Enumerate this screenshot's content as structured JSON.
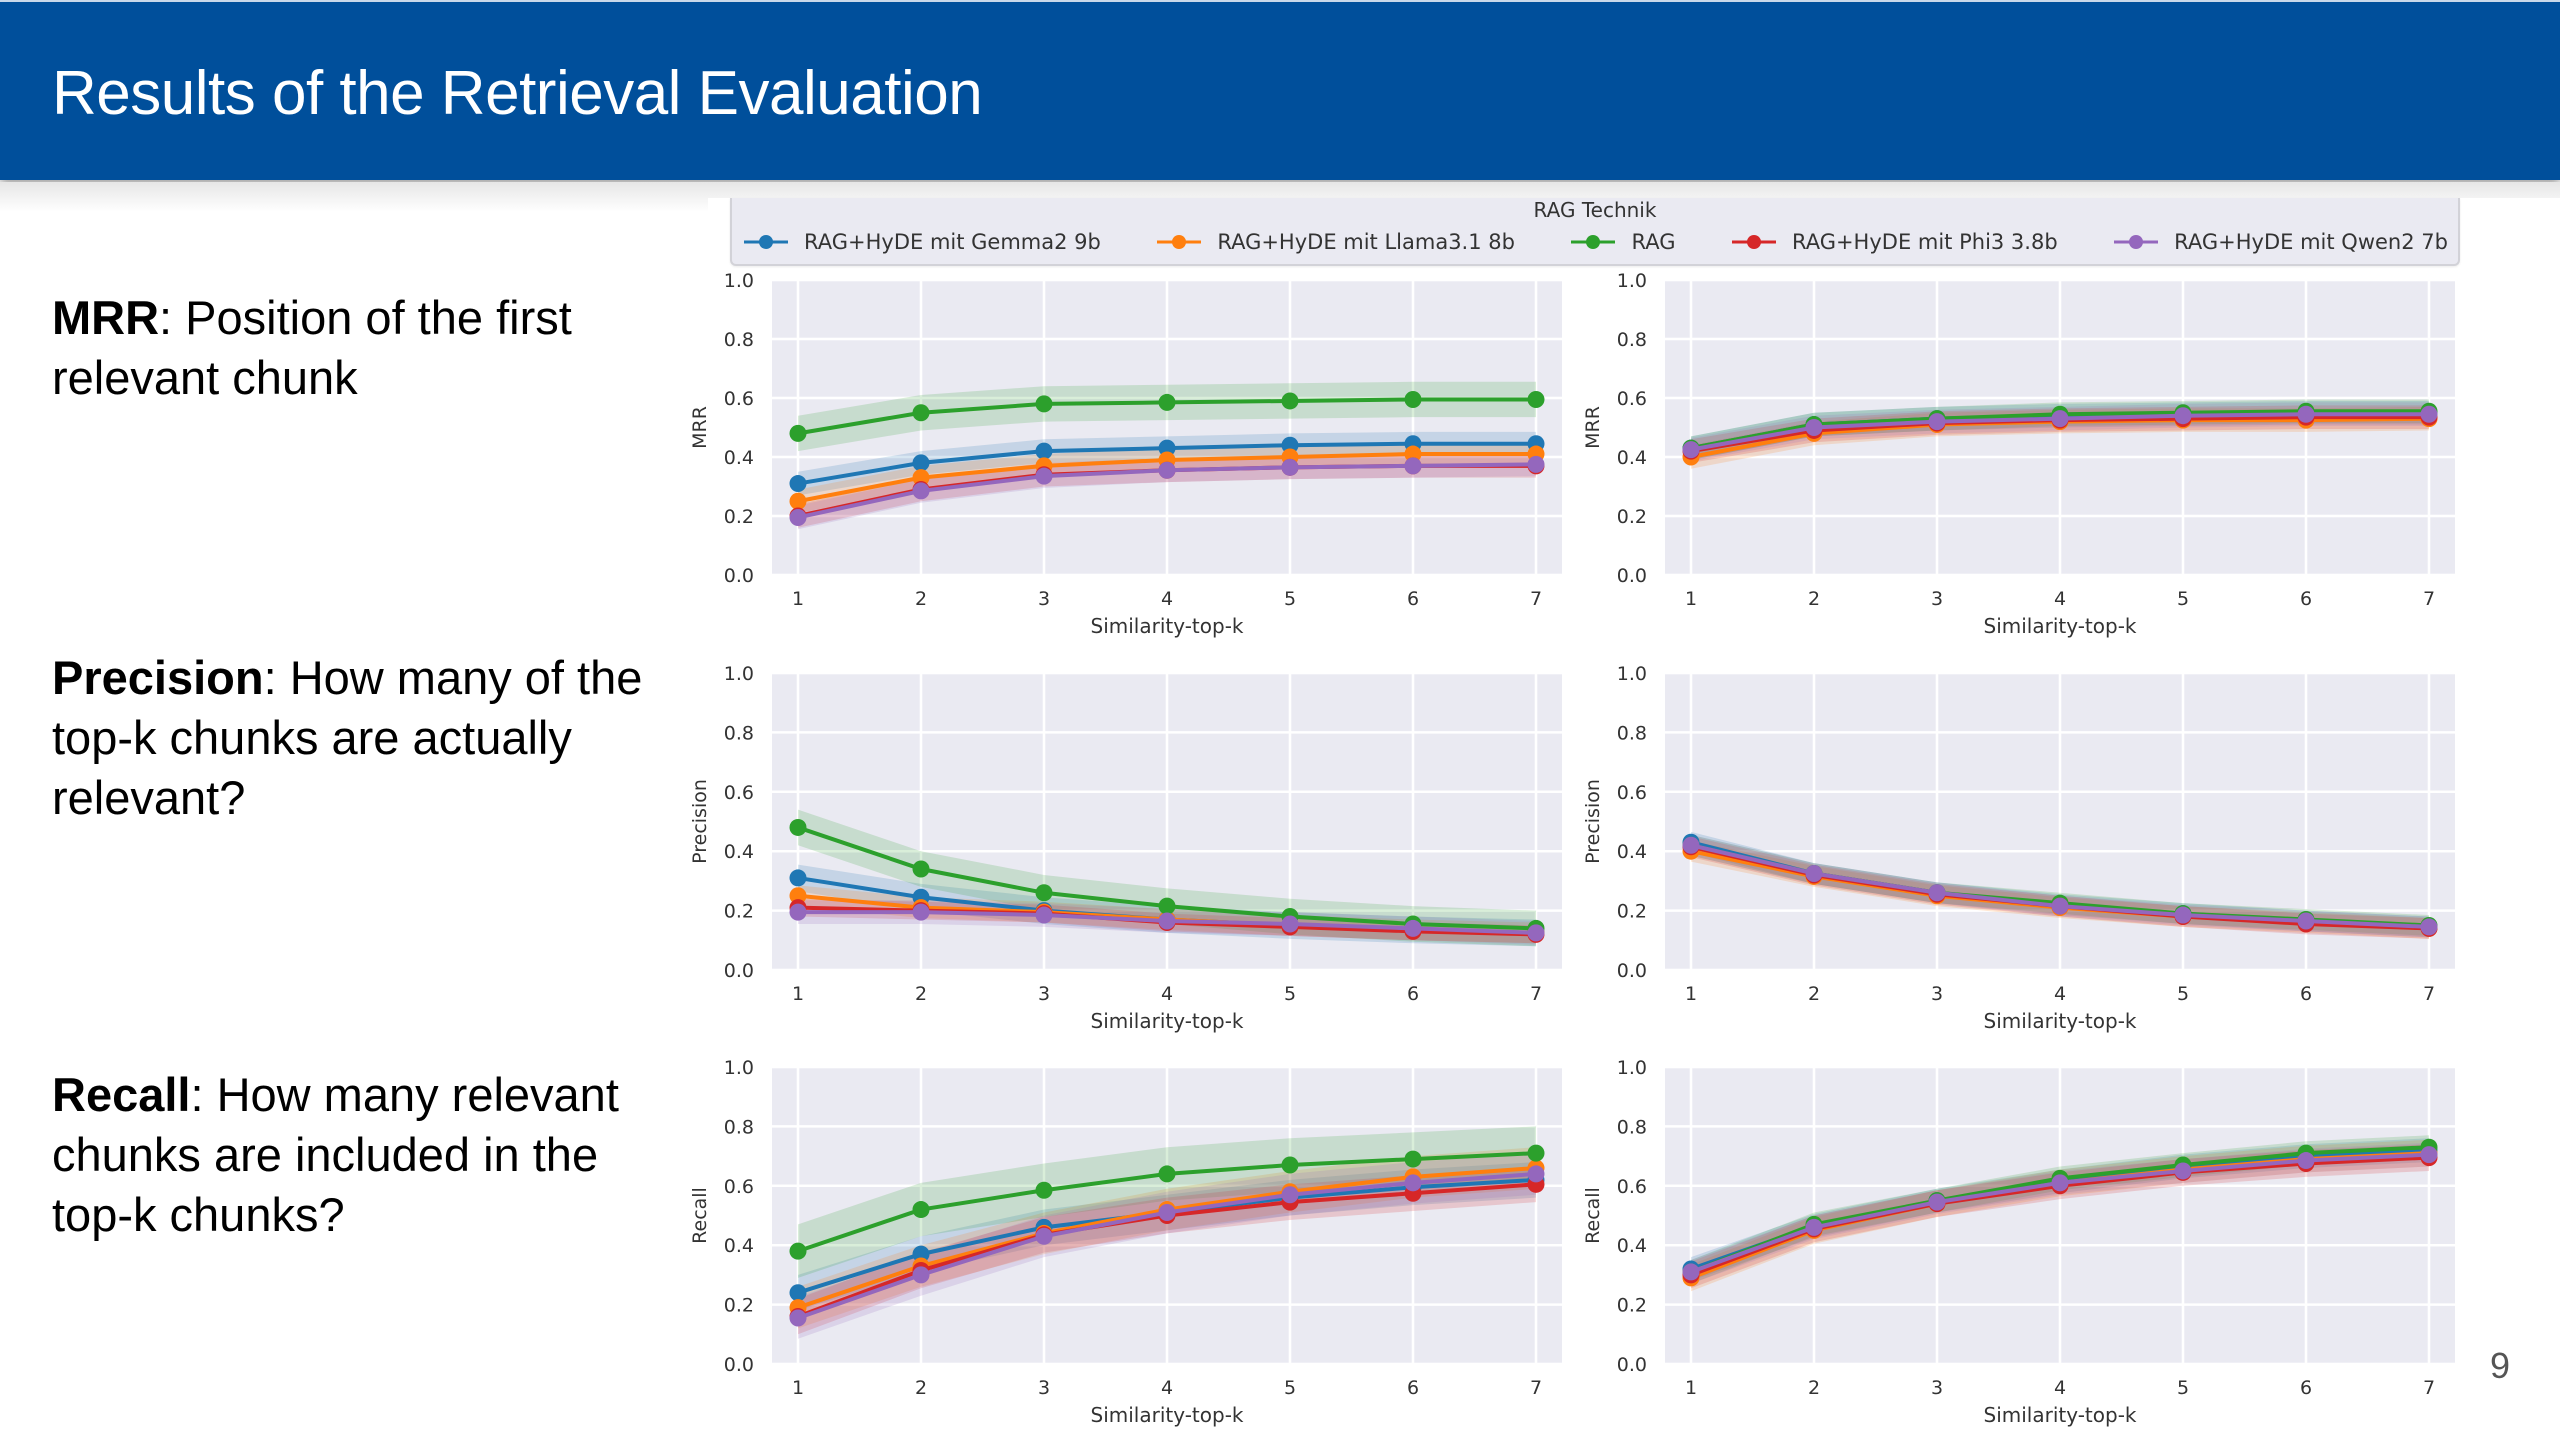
{
  "slide": {
    "title": "Results of the Retrieval Evaluation",
    "page_number": "9",
    "header_color": "#004f9b"
  },
  "descriptions": [
    {
      "term": "MRR",
      "text": ": Position of the first relevant chunk"
    },
    {
      "term": "Precision",
      "text": ": How many of the top-k chunks are actually relevant?"
    },
    {
      "term": "Recall",
      "text": ": How many relevant chunks are included in the top-k chunks?"
    }
  ],
  "legend": {
    "title": "RAG Technik",
    "items": [
      {
        "label": "RAG+HyDE mit Gemma2 9b",
        "color": "#1f77b4"
      },
      {
        "label": "RAG+HyDE mit Llama3.1 8b",
        "color": "#ff7f0e"
      },
      {
        "label": "RAG",
        "color": "#2ca02c"
      },
      {
        "label": "RAG+HyDE mit Phi3 3.8b",
        "color": "#d62728"
      },
      {
        "label": "RAG+HyDE mit Qwen2 7b",
        "color": "#9467bd"
      }
    ]
  },
  "chart_data": [
    {
      "type": "line",
      "id": "mrr-left",
      "title": "",
      "xlabel": "Similarity-top-k",
      "ylabel": "MRR",
      "x": [
        1,
        2,
        3,
        4,
        5,
        6,
        7
      ],
      "ylim": [
        0,
        1.0
      ],
      "yticks": [
        "0.0",
        "0.2",
        "0.4",
        "0.6",
        "0.8",
        "1.0"
      ],
      "xticks": [
        "1",
        "2",
        "3",
        "4",
        "5",
        "6",
        "7"
      ],
      "grid": true,
      "confidence_band": true,
      "series": [
        {
          "name": "RAG+HyDE mit Gemma2 9b",
          "values": [
            0.31,
            0.38,
            0.42,
            0.43,
            0.44,
            0.445,
            0.445
          ],
          "ci": 0.04
        },
        {
          "name": "RAG+HyDE mit Llama3.1 8b",
          "values": [
            0.25,
            0.33,
            0.37,
            0.39,
            0.4,
            0.41,
            0.41
          ],
          "ci": 0.04
        },
        {
          "name": "RAG",
          "values": [
            0.48,
            0.55,
            0.58,
            0.585,
            0.59,
            0.595,
            0.595
          ],
          "ci": 0.06
        },
        {
          "name": "RAG+HyDE mit Phi3 3.8b",
          "values": [
            0.2,
            0.29,
            0.34,
            0.355,
            0.365,
            0.37,
            0.37
          ],
          "ci": 0.04
        },
        {
          "name": "RAG+HyDE mit Qwen2 7b",
          "values": [
            0.195,
            0.285,
            0.335,
            0.355,
            0.365,
            0.37,
            0.375
          ],
          "ci": 0.04
        }
      ]
    },
    {
      "type": "line",
      "id": "mrr-right",
      "title": "",
      "xlabel": "Similarity-top-k",
      "ylabel": "MRR",
      "x": [
        1,
        2,
        3,
        4,
        5,
        6,
        7
      ],
      "ylim": [
        0,
        1.0
      ],
      "yticks": [
        "0.0",
        "0.2",
        "0.4",
        "0.6",
        "0.8",
        "1.0"
      ],
      "xticks": [
        "1",
        "2",
        "3",
        "4",
        "5",
        "6",
        "7"
      ],
      "grid": true,
      "confidence_band": true,
      "series": [
        {
          "name": "RAG+HyDE mit Gemma2 9b",
          "values": [
            0.43,
            0.51,
            0.53,
            0.54,
            0.545,
            0.55,
            0.55
          ],
          "ci": 0.04
        },
        {
          "name": "RAG+HyDE mit Llama3.1 8b",
          "values": [
            0.4,
            0.48,
            0.51,
            0.52,
            0.525,
            0.525,
            0.53
          ],
          "ci": 0.04
        },
        {
          "name": "RAG",
          "values": [
            0.43,
            0.51,
            0.53,
            0.545,
            0.55,
            0.555,
            0.555
          ],
          "ci": 0.04
        },
        {
          "name": "RAG+HyDE mit Phi3 3.8b",
          "values": [
            0.42,
            0.49,
            0.515,
            0.525,
            0.53,
            0.535,
            0.535
          ],
          "ci": 0.04
        },
        {
          "name": "RAG+HyDE mit Qwen2 7b",
          "values": [
            0.425,
            0.5,
            0.52,
            0.53,
            0.54,
            0.545,
            0.545
          ],
          "ci": 0.04
        }
      ]
    },
    {
      "type": "line",
      "id": "precision-left",
      "title": "",
      "xlabel": "Similarity-top-k",
      "ylabel": "Precision",
      "x": [
        1,
        2,
        3,
        4,
        5,
        6,
        7
      ],
      "ylim": [
        0,
        1.0
      ],
      "yticks": [
        "0.0",
        "0.2",
        "0.4",
        "0.6",
        "0.8",
        "1.0"
      ],
      "xticks": [
        "1",
        "2",
        "3",
        "4",
        "5",
        "6",
        "7"
      ],
      "grid": true,
      "confidence_band": true,
      "series": [
        {
          "name": "RAG+HyDE mit Gemma2 9b",
          "values": [
            0.31,
            0.245,
            0.2,
            0.17,
            0.15,
            0.135,
            0.125
          ],
          "ci": 0.045
        },
        {
          "name": "RAG+HyDE mit Llama3.1 8b",
          "values": [
            0.25,
            0.21,
            0.195,
            0.17,
            0.15,
            0.135,
            0.125
          ],
          "ci": 0.035
        },
        {
          "name": "RAG",
          "values": [
            0.48,
            0.34,
            0.26,
            0.215,
            0.18,
            0.155,
            0.14
          ],
          "ci": 0.06
        },
        {
          "name": "RAG+HyDE mit Phi3 3.8b",
          "values": [
            0.21,
            0.2,
            0.19,
            0.16,
            0.145,
            0.13,
            0.12
          ],
          "ci": 0.03
        },
        {
          "name": "RAG+HyDE mit Qwen2 7b",
          "values": [
            0.195,
            0.195,
            0.185,
            0.165,
            0.155,
            0.14,
            0.125
          ],
          "ci": 0.04
        }
      ]
    },
    {
      "type": "line",
      "id": "precision-right",
      "title": "",
      "xlabel": "Similarity-top-k",
      "ylabel": "Precision",
      "x": [
        1,
        2,
        3,
        4,
        5,
        6,
        7
      ],
      "ylim": [
        0,
        1.0
      ],
      "yticks": [
        "0.0",
        "0.2",
        "0.4",
        "0.6",
        "0.8",
        "1.0"
      ],
      "xticks": [
        "1",
        "2",
        "3",
        "4",
        "5",
        "6",
        "7"
      ],
      "grid": true,
      "confidence_band": true,
      "series": [
        {
          "name": "RAG+HyDE mit Gemma2 9b",
          "values": [
            0.43,
            0.325,
            0.26,
            0.22,
            0.19,
            0.165,
            0.145
          ],
          "ci": 0.035
        },
        {
          "name": "RAG+HyDE mit Llama3.1 8b",
          "values": [
            0.4,
            0.315,
            0.25,
            0.21,
            0.18,
            0.16,
            0.14
          ],
          "ci": 0.035
        },
        {
          "name": "RAG",
          "values": [
            0.42,
            0.325,
            0.26,
            0.225,
            0.19,
            0.17,
            0.15
          ],
          "ci": 0.035
        },
        {
          "name": "RAG+HyDE mit Phi3 3.8b",
          "values": [
            0.415,
            0.32,
            0.255,
            0.215,
            0.18,
            0.155,
            0.14
          ],
          "ci": 0.035
        },
        {
          "name": "RAG+HyDE mit Qwen2 7b",
          "values": [
            0.42,
            0.325,
            0.26,
            0.215,
            0.185,
            0.165,
            0.145
          ],
          "ci": 0.035
        }
      ]
    },
    {
      "type": "line",
      "id": "recall-left",
      "title": "",
      "xlabel": "Similarity-top-k",
      "ylabel": "Recall",
      "x": [
        1,
        2,
        3,
        4,
        5,
        6,
        7
      ],
      "ylim": [
        0,
        1.0
      ],
      "yticks": [
        "0.0",
        "0.2",
        "0.4",
        "0.6",
        "0.8",
        "1.0"
      ],
      "xticks": [
        "1",
        "2",
        "3",
        "4",
        "5",
        "6",
        "7"
      ],
      "grid": true,
      "confidence_band": true,
      "series": [
        {
          "name": "RAG+HyDE mit Gemma2 9b",
          "values": [
            0.24,
            0.37,
            0.46,
            0.51,
            0.56,
            0.595,
            0.62
          ],
          "ci": 0.06
        },
        {
          "name": "RAG+HyDE mit Llama3.1 8b",
          "values": [
            0.19,
            0.33,
            0.44,
            0.52,
            0.58,
            0.63,
            0.66
          ],
          "ci": 0.07
        },
        {
          "name": "RAG",
          "values": [
            0.38,
            0.52,
            0.585,
            0.64,
            0.67,
            0.69,
            0.71
          ],
          "ci": 0.09
        },
        {
          "name": "RAG+HyDE mit Phi3 3.8b",
          "values": [
            0.16,
            0.315,
            0.435,
            0.5,
            0.545,
            0.575,
            0.605
          ],
          "ci": 0.06
        },
        {
          "name": "RAG+HyDE mit Qwen2 7b",
          "values": [
            0.155,
            0.3,
            0.43,
            0.51,
            0.57,
            0.61,
            0.64
          ],
          "ci": 0.07
        }
      ]
    },
    {
      "type": "line",
      "id": "recall-right",
      "title": "",
      "xlabel": "Similarity-top-k",
      "ylabel": "Recall",
      "x": [
        1,
        2,
        3,
        4,
        5,
        6,
        7
      ],
      "ylim": [
        0,
        1.0
      ],
      "yticks": [
        "0.0",
        "0.2",
        "0.4",
        "0.6",
        "0.8",
        "1.0"
      ],
      "xticks": [
        "1",
        "2",
        "3",
        "4",
        "5",
        "6",
        "7"
      ],
      "grid": true,
      "confidence_band": true,
      "series": [
        {
          "name": "RAG+HyDE mit Gemma2 9b",
          "values": [
            0.32,
            0.465,
            0.55,
            0.615,
            0.665,
            0.7,
            0.72
          ],
          "ci": 0.04
        },
        {
          "name": "RAG+HyDE mit Llama3.1 8b",
          "values": [
            0.29,
            0.45,
            0.54,
            0.61,
            0.655,
            0.69,
            0.71
          ],
          "ci": 0.045
        },
        {
          "name": "RAG",
          "values": [
            0.31,
            0.47,
            0.55,
            0.625,
            0.67,
            0.71,
            0.73
          ],
          "ci": 0.04
        },
        {
          "name": "RAG+HyDE mit Phi3 3.8b",
          "values": [
            0.3,
            0.455,
            0.54,
            0.6,
            0.645,
            0.675,
            0.695
          ],
          "ci": 0.045
        },
        {
          "name": "RAG+HyDE mit Qwen2 7b",
          "values": [
            0.31,
            0.46,
            0.545,
            0.61,
            0.65,
            0.685,
            0.705
          ],
          "ci": 0.04
        }
      ]
    }
  ]
}
